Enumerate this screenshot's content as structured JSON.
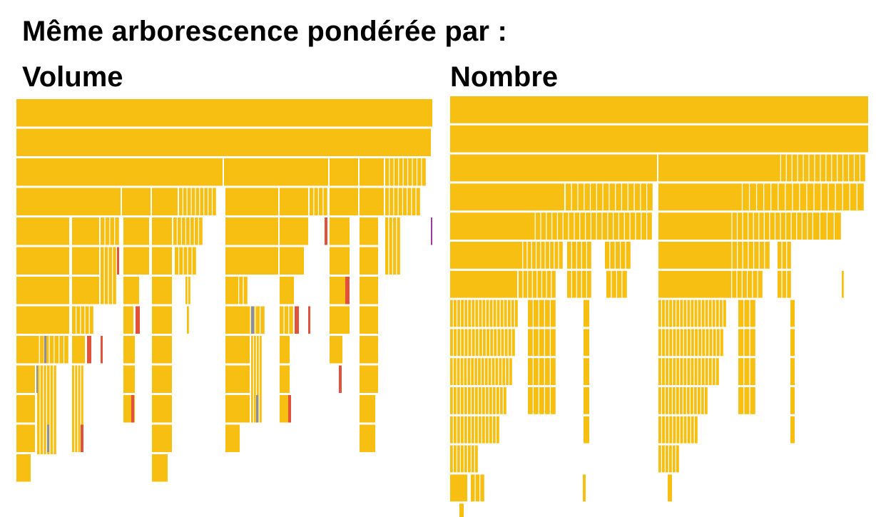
{
  "title": "Même arborescence pondérée par :",
  "panels": {
    "left": {
      "label": "Volume"
    },
    "right": {
      "label": "Nombre"
    }
  },
  "colors": {
    "node": "#f7bf12",
    "separator": "#ffffff",
    "accent_red": "#e0523a",
    "accent_grey": "#8a8fa0",
    "accent_purple": "#9b3b9b"
  }
}
